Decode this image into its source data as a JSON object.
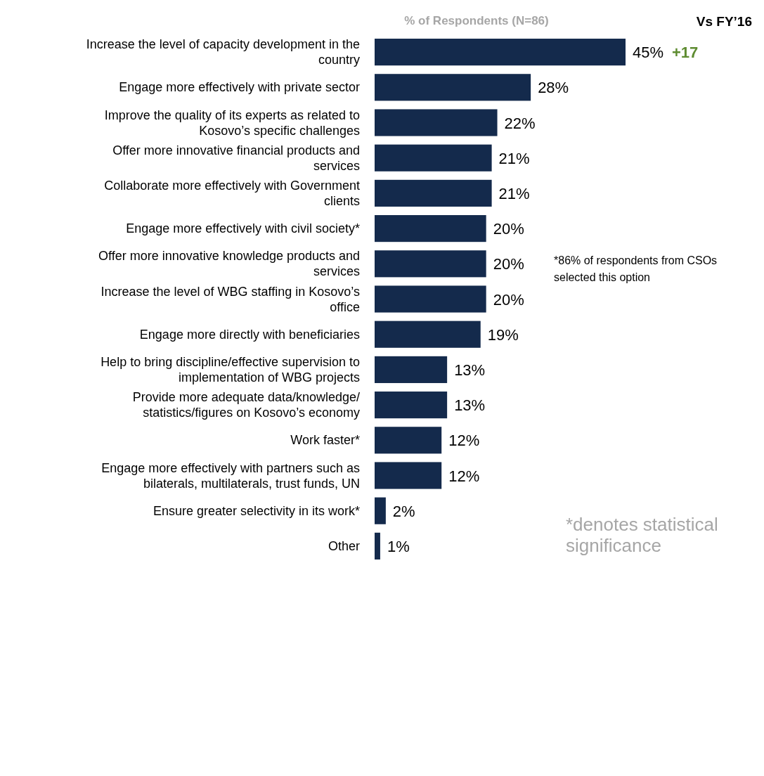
{
  "chart_data": {
    "type": "bar",
    "orientation": "horizontal",
    "xlabel": "% of Respondents (N=86)",
    "categories": [
      "Increase the level of capacity development in the country",
      "Engage more effectively with private sector",
      "Improve the quality of its experts as related to Kosovo’s specific challenges",
      "Offer more innovative financial products and services",
      "Collaborate more effectively with Government clients",
      "Engage more effectively with civil society*",
      "Offer more innovative knowledge products and services",
      "Increase the level of WBG staffing in Kosovo’s office",
      "Engage more directly with beneficiaries",
      "Help to bring discipline/effective supervision to implementation of WBG projects",
      "Provide more adequate data/knowledge/ statistics/figures on Kosovo’s economy",
      "Work faster*",
      "Engage more effectively with partners such as bilaterals, multilaterals, trust funds, UN",
      "Ensure greater selectivity in its work*",
      "Other"
    ],
    "values": [
      45,
      28,
      22,
      21,
      21,
      20,
      20,
      20,
      19,
      13,
      13,
      12,
      12,
      2,
      1
    ],
    "value_labels": [
      "45%",
      "28%",
      "22%",
      "21%",
      "21%",
      "20%",
      "20%",
      "20%",
      "19%",
      "13%",
      "13%",
      "12%",
      "12%",
      "2%",
      "1%"
    ],
    "color": "#142a4c",
    "annotations": [
      "Vs FY’16",
      {
        "text": "+17",
        "x": 45,
        "y": "Increase the level of capacity development in the country"
      },
      "*86% of respondents from CSOs selected this option",
      "*denotes statistical significance"
    ]
  }
}
